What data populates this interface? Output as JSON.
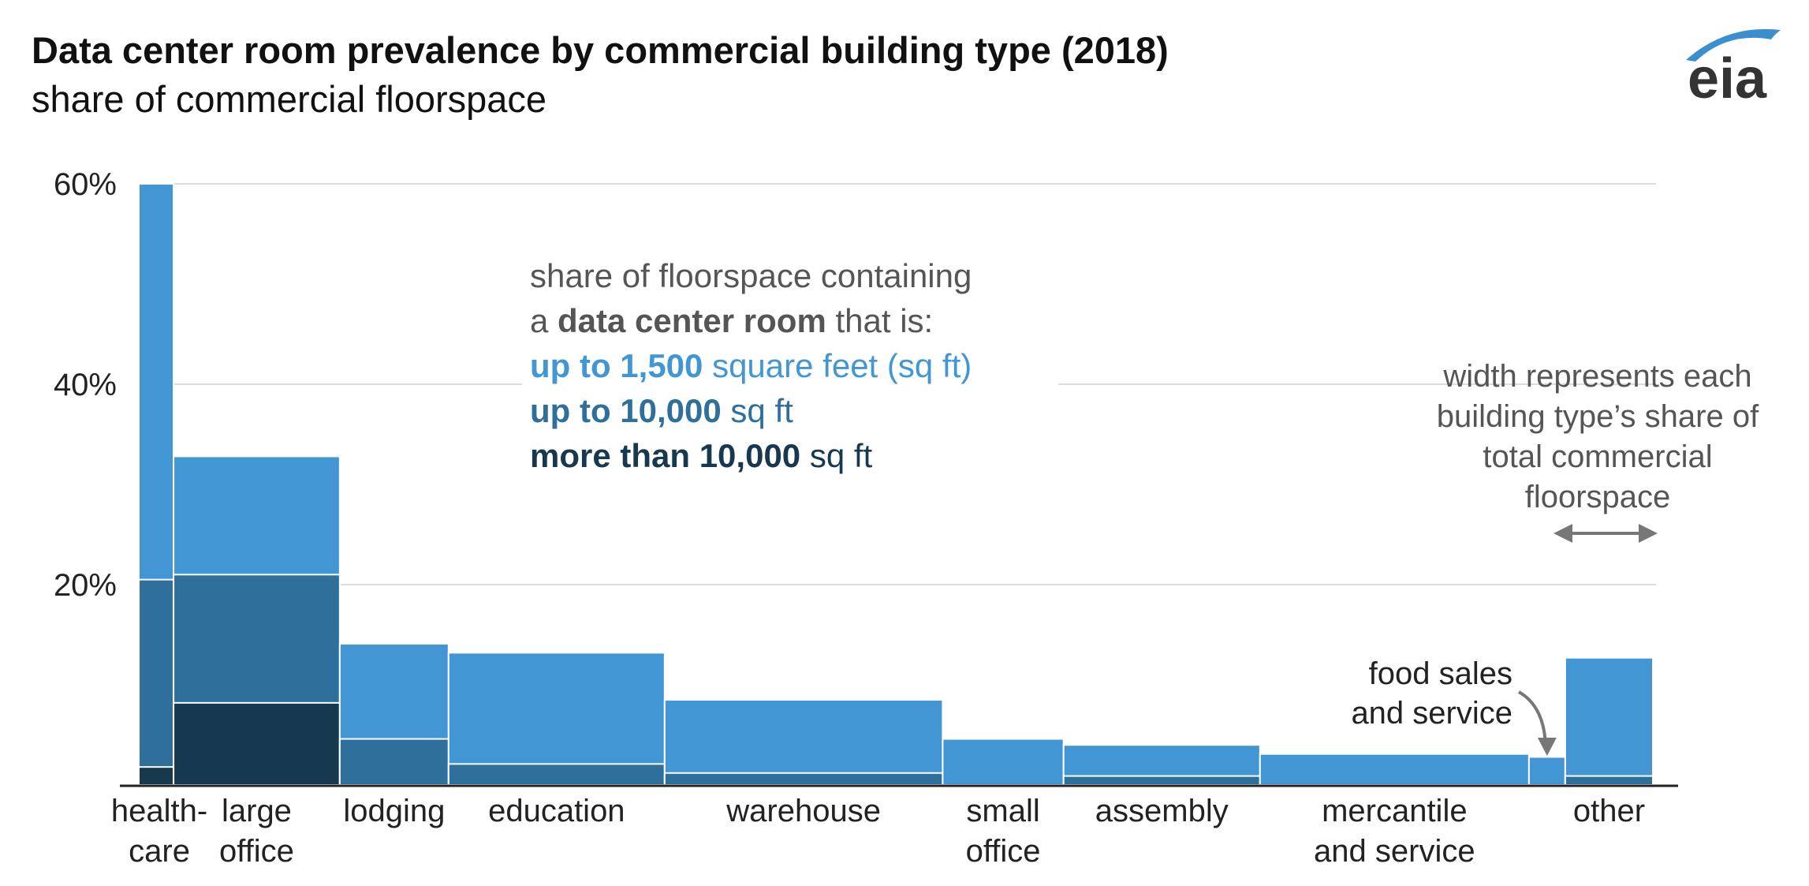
{
  "chart_data": {
    "type": "bar",
    "title": "Data center room prevalence by commercial building type (2018)",
    "subtitle": "share of commercial floorspace",
    "ylim": [
      0,
      60
    ],
    "yticks": [
      "60%",
      "40%",
      "20%"
    ],
    "ytick_values": [
      60,
      40,
      20
    ],
    "grid": true,
    "categories": [
      {
        "label": [
          "health-",
          "care"
        ],
        "width_share": 2.3,
        "values": [
          60.0,
          20.5,
          1.8
        ]
      },
      {
        "label": [
          "large",
          "office"
        ],
        "width_share": 11.0,
        "values": [
          32.8,
          21.0,
          8.2
        ]
      },
      {
        "label": [
          "lodging"
        ],
        "width_share": 7.2,
        "values": [
          14.1,
          4.6,
          0
        ]
      },
      {
        "label": [
          "education"
        ],
        "width_share": 14.3,
        "values": [
          13.2,
          2.1,
          0
        ]
      },
      {
        "label": [
          "warehouse"
        ],
        "width_share": 18.4,
        "values": [
          8.5,
          1.2,
          0
        ]
      },
      {
        "label": [
          "small",
          "office"
        ],
        "width_share": 8.0,
        "values": [
          4.6,
          0,
          0
        ]
      },
      {
        "label": [
          "assembly"
        ],
        "width_share": 13.0,
        "values": [
          4.0,
          0.9,
          0
        ]
      },
      {
        "label": [
          "mercantile",
          "and service"
        ],
        "width_share": 17.8,
        "values": [
          3.1,
          0,
          0
        ]
      },
      {
        "label": [
          "food sales",
          "and service"
        ],
        "width_share": 2.4,
        "values": [
          2.8,
          0,
          0
        ],
        "annotated": true
      },
      {
        "label": [
          "other"
        ],
        "width_share": 5.8,
        "values": [
          12.7,
          0.9,
          0
        ]
      }
    ],
    "series": [
      {
        "name": "up to 1,500 square feet (sq ft)",
        "color": "#4196d3"
      },
      {
        "name": "up to 10,000 sq ft",
        "color": "#2e6f9c"
      },
      {
        "name": "more than 10,000 sq ft",
        "color": "#17394f"
      }
    ],
    "legend": {
      "intro_line1": "share of floorspace containing",
      "intro_line2_pre": "a ",
      "intro_line2_bold": "data center room",
      "intro_line2_post": " that is:",
      "items": [
        {
          "bold": "up to 1,500",
          "rest": " square feet (sq ft)",
          "color": "#4196d3"
        },
        {
          "bold": "up to 10,000",
          "rest": " sq ft",
          "color": "#2e6f9c"
        },
        {
          "bold": "more than 10,000",
          "rest": " sq ft",
          "color": "#17394f"
        }
      ]
    },
    "width_note": [
      "width represents each",
      "building type’s share of",
      "total commercial",
      "floorspace"
    ]
  },
  "logo": {
    "text": "eia",
    "color": "#333333",
    "arc_color": "#3a8fd0"
  }
}
